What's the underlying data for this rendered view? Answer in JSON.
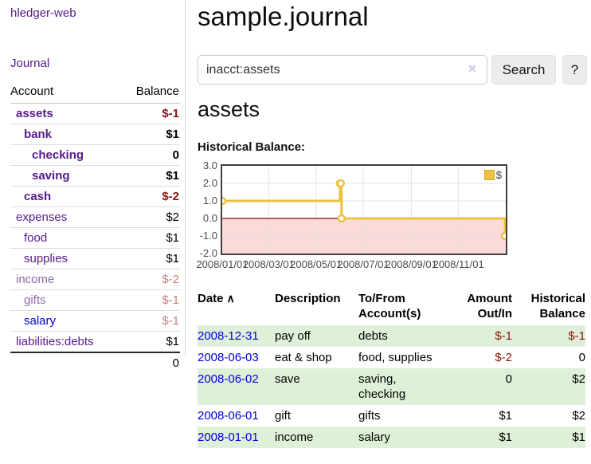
{
  "app": {
    "title": "hledger-web"
  },
  "colors": {
    "accent_purple": "#551a8b",
    "dim_purple": "#8d6ca8",
    "link_blue": "#0000dd",
    "negative_red": "#8b1414",
    "dim_negative_red": "#c07f7c",
    "row_green": "#dff0d8",
    "chart_series_gold": "#edc240",
    "chart_negative_region_pink": "#fcdada",
    "chart_zero_line_red": "#990000"
  },
  "icons": {
    "clear": "✕",
    "sort_ascending": "∧"
  },
  "sidebar": {
    "nav": {
      "journal": "Journal"
    },
    "table_headers": {
      "account": "Account",
      "balance": "Balance"
    },
    "accounts": [
      {
        "name": "assets",
        "level": 0,
        "style": "matched",
        "balance": "$-1",
        "balance_style": "neg bold"
      },
      {
        "name": "bank",
        "level": 1,
        "style": "matched",
        "balance": "$1",
        "balance_style": "bold"
      },
      {
        "name": "checking",
        "level": 2,
        "style": "matched",
        "balance": "0",
        "balance_style": "bold"
      },
      {
        "name": "saving",
        "level": 2,
        "style": "matched",
        "balance": "$1",
        "balance_style": "bold"
      },
      {
        "name": "cash",
        "level": 1,
        "style": "matched",
        "balance": "$-2",
        "balance_style": "neg bold"
      },
      {
        "name": "expenses",
        "level": 0,
        "style": "",
        "balance": "$2",
        "balance_style": ""
      },
      {
        "name": "food",
        "level": 1,
        "style": "",
        "balance": "$1",
        "balance_style": ""
      },
      {
        "name": "supplies",
        "level": 1,
        "style": "",
        "balance": "$1",
        "balance_style": ""
      },
      {
        "name": "income",
        "level": 0,
        "style": "dim",
        "balance": "$-2",
        "balance_style": "dimneg"
      },
      {
        "name": "gifts",
        "level": 1,
        "style": "dim",
        "balance": "$-1",
        "balance_style": "dimneg"
      },
      {
        "name": "salary",
        "level": 1,
        "style": "new",
        "balance": "$-1",
        "balance_style": "dimneg"
      },
      {
        "name": "liabilities:debts",
        "level": 0,
        "style": "",
        "balance": "$1",
        "balance_style": ""
      }
    ],
    "total": "0"
  },
  "main": {
    "title": "sample.journal",
    "search": {
      "value": "inacct:assets",
      "button_label": "Search",
      "help_label": "?"
    },
    "account_heading": "assets",
    "chart_heading": "Historical Balance:"
  },
  "chart_data": {
    "type": "line",
    "title": "Historical Balance",
    "legend": "$",
    "legend_position": "top-right",
    "steps": true,
    "grid": true,
    "ylim": [
      -2,
      3
    ],
    "x_range": [
      "2008-01-01",
      "2009-01-01"
    ],
    "y_ticks": [
      3.0,
      2.0,
      1.0,
      0.0,
      -1.0,
      -2.0
    ],
    "x_ticks": [
      "2008/01/01",
      "2008/03/01",
      "2008/05/01",
      "2008/07/01",
      "2008/09/01",
      "2008/11/01"
    ],
    "series": [
      {
        "name": "$",
        "color": "#edc240",
        "points": [
          {
            "date": "2008-01-01",
            "value": 1
          },
          {
            "date": "2008-06-01",
            "value": 2
          },
          {
            "date": "2008-06-02",
            "value": 2
          },
          {
            "date": "2008-06-03",
            "value": 0
          },
          {
            "date": "2008-12-31",
            "value": -1
          }
        ]
      }
    ]
  },
  "register": {
    "headers": {
      "date": "Date",
      "sort_indicator": "∧",
      "description": "Description",
      "tofrom_line1": "To/From",
      "tofrom_line2": "Account(s)",
      "amount_line1": "Amount",
      "amount_line2": "Out/In",
      "hist_line1": "Historical",
      "hist_line2": "Balance"
    },
    "rows": [
      {
        "date": "2008-12-31",
        "description": "pay off",
        "accounts": "debts",
        "amount": "$-1",
        "amount_negative": true,
        "balance": "$-1",
        "balance_negative": true
      },
      {
        "date": "2008-06-03",
        "description": "eat & shop",
        "accounts": "food, supplies",
        "amount": "$-2",
        "amount_negative": true,
        "balance": "0",
        "balance_negative": false
      },
      {
        "date": "2008-06-02",
        "description": "save",
        "accounts": "saving, checking",
        "amount": "0",
        "amount_negative": false,
        "balance": "$2",
        "balance_negative": false
      },
      {
        "date": "2008-06-01",
        "description": "gift",
        "accounts": "gifts",
        "amount": "$1",
        "amount_negative": false,
        "balance": "$2",
        "balance_negative": false
      },
      {
        "date": "2008-01-01",
        "description": "income",
        "accounts": "salary",
        "amount": "$1",
        "amount_negative": false,
        "balance": "$1",
        "balance_negative": false
      }
    ]
  }
}
